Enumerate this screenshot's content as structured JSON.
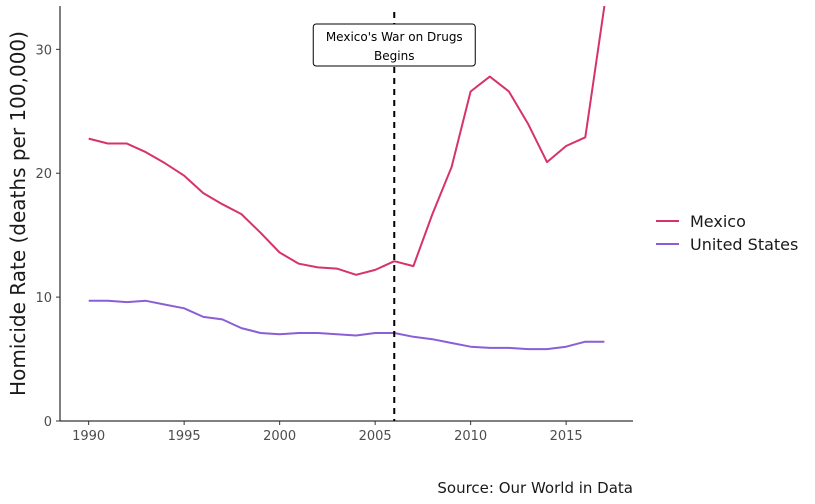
{
  "chart_data": {
    "type": "line",
    "title": "",
    "xlabel": "",
    "ylabel": "Homicide Rate (deaths per 100,000)",
    "xlim": [
      1988.5,
      2018.5
    ],
    "ylim": [
      0,
      33.5
    ],
    "x_ticks": [
      1990,
      1995,
      2000,
      2005,
      2010,
      2015
    ],
    "y_ticks": [
      0,
      10,
      20,
      30
    ],
    "grid": false,
    "legend_position": "right",
    "caption": "Source: Our World in Data",
    "annotation": {
      "x": 2006,
      "label_lines": [
        "Mexico's War on Drugs",
        "Begins"
      ],
      "style": "dashed vertical line"
    },
    "x": [
      1990,
      1991,
      1992,
      1993,
      1994,
      1995,
      1996,
      1997,
      1998,
      1999,
      2000,
      2001,
      2002,
      2003,
      2004,
      2005,
      2006,
      2007,
      2008,
      2009,
      2010,
      2011,
      2012,
      2013,
      2014,
      2015,
      2016,
      2017
    ],
    "series": [
      {
        "name": "Mexico",
        "color": "#d6336c",
        "values": [
          22.8,
          22.4,
          22.4,
          21.7,
          20.8,
          19.8,
          18.4,
          17.5,
          16.7,
          15.2,
          13.6,
          12.7,
          12.4,
          12.3,
          11.8,
          12.2,
          12.9,
          12.5,
          16.7,
          20.5,
          26.6,
          27.8,
          26.6,
          24.0,
          20.9,
          22.2,
          22.9,
          33.5
        ]
      },
      {
        "name": "United States",
        "color": "#8a5fd6",
        "values": [
          9.7,
          9.7,
          9.6,
          9.7,
          9.4,
          9.1,
          8.4,
          8.2,
          7.5,
          7.1,
          7.0,
          7.1,
          7.1,
          7.0,
          6.9,
          7.1,
          7.1,
          6.8,
          6.6,
          6.3,
          6.0,
          5.9,
          5.9,
          5.8,
          5.8,
          6.0,
          6.4,
          6.4
        ]
      }
    ]
  }
}
